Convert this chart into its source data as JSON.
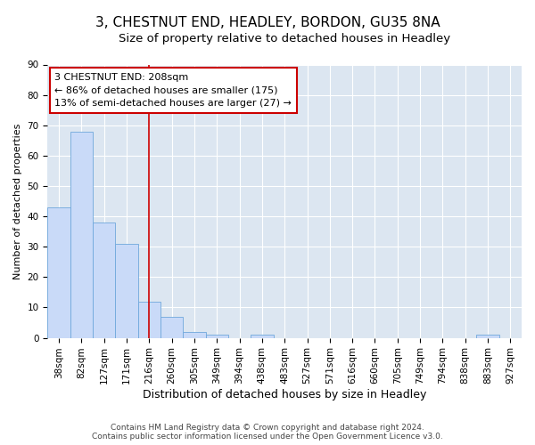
{
  "title": "3, CHESTNUT END, HEADLEY, BORDON, GU35 8NA",
  "subtitle": "Size of property relative to detached houses in Headley",
  "xlabel": "Distribution of detached houses by size in Headley",
  "ylabel": "Number of detached properties",
  "categories": [
    "38sqm",
    "82sqm",
    "127sqm",
    "171sqm",
    "216sqm",
    "260sqm",
    "305sqm",
    "349sqm",
    "394sqm",
    "438sqm",
    "483sqm",
    "527sqm",
    "571sqm",
    "616sqm",
    "660sqm",
    "705sqm",
    "749sqm",
    "794sqm",
    "838sqm",
    "883sqm",
    "927sqm"
  ],
  "values": [
    43,
    68,
    38,
    31,
    12,
    7,
    2,
    1,
    0,
    1,
    0,
    0,
    0,
    0,
    0,
    0,
    0,
    0,
    0,
    1,
    0
  ],
  "bar_color": "#c9daf8",
  "bar_edge_color": "#6fa8dc",
  "vline_x": 4,
  "vline_color": "#cc0000",
  "annotation_lines": [
    "3 CHESTNUT END: 208sqm",
    "← 86% of detached houses are smaller (175)",
    "13% of semi-detached houses are larger (27) →"
  ],
  "ann_box_color": "white",
  "ann_edge_color": "#cc0000",
  "ylim": [
    0,
    90
  ],
  "yticks": [
    0,
    10,
    20,
    30,
    40,
    50,
    60,
    70,
    80,
    90
  ],
  "bg_color": "#ffffff",
  "plot_bg_color": "#dce6f1",
  "grid_color": "white",
  "footer": "Contains HM Land Registry data © Crown copyright and database right 2024.\nContains public sector information licensed under the Open Government Licence v3.0.",
  "title_fontsize": 11,
  "subtitle_fontsize": 9.5,
  "ylabel_fontsize": 8,
  "xlabel_fontsize": 9,
  "tick_fontsize": 7.5,
  "ann_fontsize": 8,
  "footer_fontsize": 6.5
}
